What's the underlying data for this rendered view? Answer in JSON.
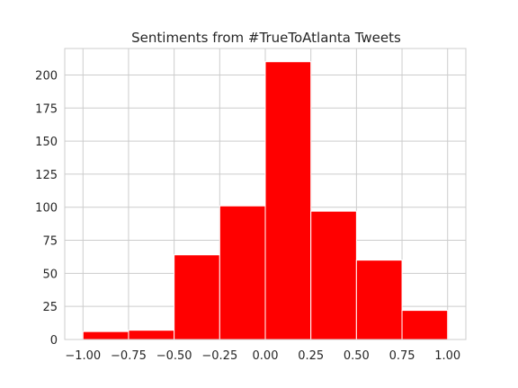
{
  "chart_data": {
    "type": "bar",
    "title": "Sentiments from #TrueToAtlanta Tweets",
    "xlabel": "",
    "ylabel": "",
    "bin_edges": [
      -1.0,
      -0.75,
      -0.5,
      -0.25,
      0.0,
      0.25,
      0.5,
      0.75,
      1.0
    ],
    "values": [
      6,
      7,
      64,
      101,
      210,
      97,
      60,
      22
    ],
    "xlim": [
      -1.1,
      1.1
    ],
    "ylim": [
      0,
      220
    ],
    "x_ticks": [
      "−1.00",
      "−0.75",
      "−0.50",
      "−0.25",
      "0.00",
      "0.25",
      "0.50",
      "0.75",
      "1.00"
    ],
    "x_tick_values": [
      -1.0,
      -0.75,
      -0.5,
      -0.25,
      0.0,
      0.25,
      0.5,
      0.75,
      1.0
    ],
    "y_ticks": [
      "0",
      "25",
      "50",
      "75",
      "100",
      "125",
      "150",
      "175",
      "200"
    ],
    "y_tick_values": [
      0,
      25,
      50,
      75,
      100,
      125,
      150,
      175,
      200
    ],
    "grid": true,
    "bar_color": "#ff0000",
    "grid_color": "#cccccc",
    "background": "#ffffff"
  }
}
